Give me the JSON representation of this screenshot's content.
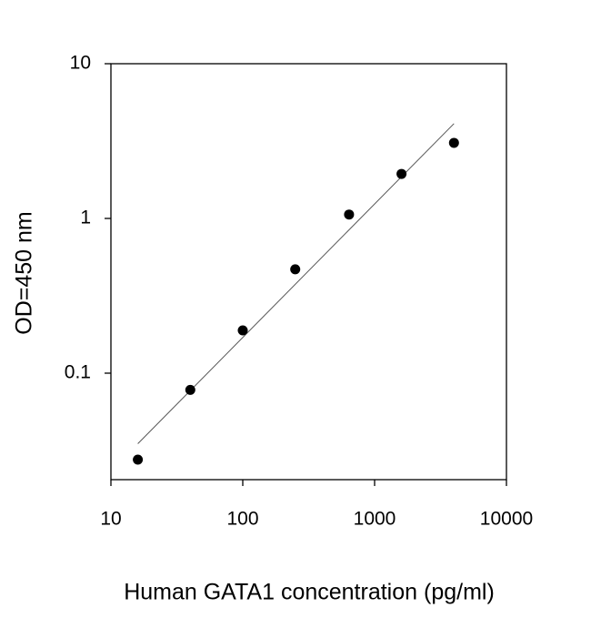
{
  "chart_data": {
    "type": "scatter",
    "x_label": "Human GATA1 concentration (pg/ml)",
    "y_label": "OD=450 nm",
    "x": [
      16,
      40,
      100,
      250,
      640,
      1600,
      4000
    ],
    "values": [
      0.0276,
      0.078,
      0.189,
      0.469,
      1.06,
      1.94,
      3.08
    ],
    "color": "#000000",
    "fit": {
      "x": [
        16,
        4000
      ],
      "values": [
        0.035,
        4.1
      ],
      "color": "#555555"
    },
    "xlim": [
      10,
      10000
    ],
    "ylim": [
      0.0205,
      10
    ],
    "xticks": [
      10,
      100,
      1000,
      10000
    ],
    "yticks": [
      0.1,
      1,
      10
    ],
    "xscale": "log",
    "yscale": "log",
    "grid": false
  }
}
